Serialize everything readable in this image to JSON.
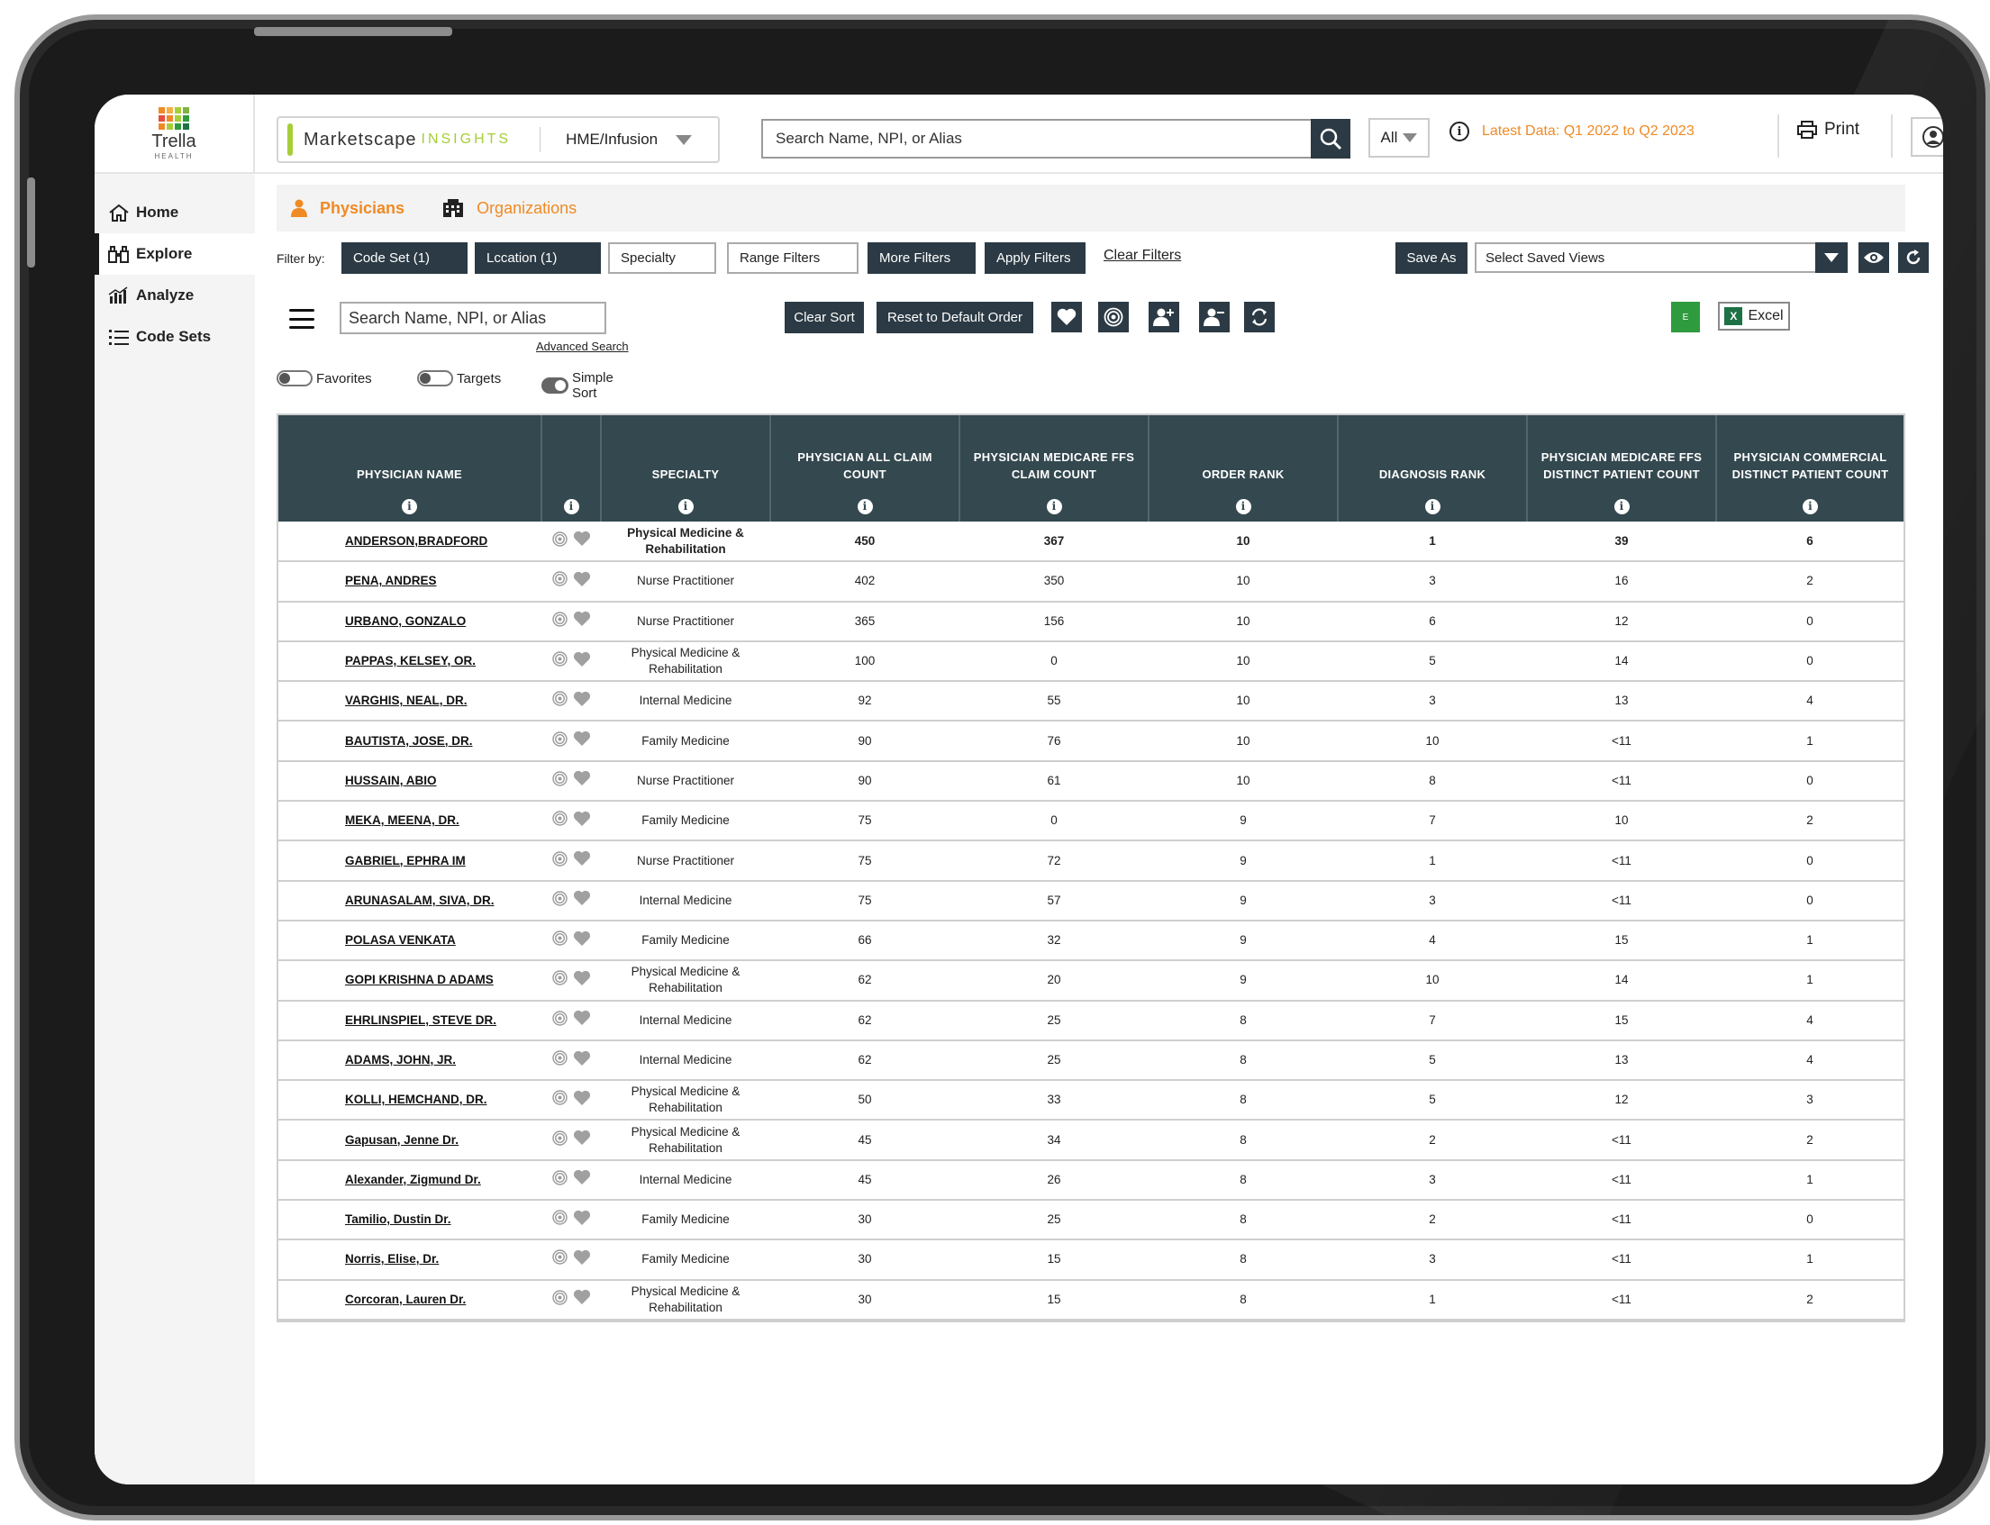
{
  "brand": {
    "logo_name": "Trella",
    "logo_sub": "HEALTH",
    "logo_colors": [
      "#f08a24",
      "#f5b041",
      "#a6ce39",
      "#7fb241",
      "#e74c3c",
      "#f08a24",
      "#a6ce39",
      "#2e9b3f",
      "#f08a24",
      "#a6ce39",
      "#2e9b3f",
      "#1e7145"
    ]
  },
  "sidebar": {
    "items": [
      {
        "label": "Home",
        "icon": "home-icon"
      },
      {
        "label": "Explore",
        "icon": "binoculars-icon",
        "active": true
      },
      {
        "label": "Analyze",
        "icon": "bar-chart-icon"
      },
      {
        "label": "Code Sets",
        "icon": "list-icon"
      }
    ]
  },
  "header": {
    "product_name": "Marketscape",
    "product_suffix": "INSIGHTS",
    "segment": "HME/Infusion",
    "search_placeholder": "Search Name, NPI, or Alias",
    "scope": "All",
    "latest_data": "Latest Data: Q1 2022 to Q2 2023",
    "print_label": "Print"
  },
  "tabs": [
    {
      "label": "Physicians",
      "icon": "person-icon",
      "active": true
    },
    {
      "label": "Organizations",
      "icon": "building-icon"
    }
  ],
  "filters": {
    "label": "Filter by:",
    "code_set": "Code Set (1)",
    "location": "Lccation (1)",
    "specialty": "Specialty",
    "range": "Range Filters",
    "more": "More Filters",
    "apply": "Apply Filters",
    "clear": "Clear Filters",
    "save_as": "Save As",
    "saved_views": "Select Saved Views"
  },
  "toolbar": {
    "search_placeholder": "Search Name, NPI, or Alias",
    "advanced_search": "Advanced Search",
    "clear_sort": "Clear Sort",
    "reset_order": "Reset to Default Order",
    "excel_mini": "E",
    "excel": "Excel"
  },
  "toggles": {
    "favorites": "Favorites",
    "targets": "Targets",
    "simple_sort": "Simple Sort"
  },
  "colors": {
    "accent": "#f08a24",
    "dark": "#2b3a44",
    "header_bg": "#34484f",
    "lime": "#a6ce39"
  },
  "table": {
    "columns": [
      "PHYSICIAN NAME",
      "",
      "SPECIALTY",
      "PHYSICIAN ALL CLAIM COUNT",
      "PHYSICIAN MEDICARE  FFS CLAIM COUNT",
      "ORDER RANK",
      "DIAGNOSIS RANK",
      "PHYSICIAN MEDICARE FFS DISTINCT PATIENT COUNT",
      "PHYSICIAN COMMERCIAL DISTINCT PATIENT COUNT"
    ],
    "rows": [
      {
        "name": "ANDERSON,BRADFORD",
        "specialty": "Physical Medicine & Rehabilitation",
        "all_claims": "450",
        "medicare_claims": "367",
        "order_rank": "10",
        "diagnosis_rank": "1",
        "medicare_patients": "39",
        "commercial_patients": "6"
      },
      {
        "name": "PENA, ANDRES",
        "specialty": "Nurse Practitioner",
        "all_claims": "402",
        "medicare_claims": "350",
        "order_rank": "10",
        "diagnosis_rank": "3",
        "medicare_patients": "16",
        "commercial_patients": "2"
      },
      {
        "name": "URBANO, GONZALO",
        "specialty": "Nurse Practitioner",
        "all_claims": "365",
        "medicare_claims": "156",
        "order_rank": "10",
        "diagnosis_rank": "6",
        "medicare_patients": "12",
        "commercial_patients": "0"
      },
      {
        "name": "PAPPAS, KELSEY, OR.",
        "specialty": "Physical Medicine & Rehabilitation",
        "all_claims": "100",
        "medicare_claims": "0",
        "order_rank": "10",
        "diagnosis_rank": "5",
        "medicare_patients": "14",
        "commercial_patients": "0"
      },
      {
        "name": "VARGHIS, NEAL, DR.",
        "specialty": "Internal Medicine",
        "all_claims": "92",
        "medicare_claims": "55",
        "order_rank": "10",
        "diagnosis_rank": "3",
        "medicare_patients": "13",
        "commercial_patients": "4"
      },
      {
        "name": "BAUTISTA, JOSE, DR.",
        "specialty": "Family Medicine",
        "all_claims": "90",
        "medicare_claims": "76",
        "order_rank": "10",
        "diagnosis_rank": "10",
        "medicare_patients": "<11",
        "commercial_patients": "1"
      },
      {
        "name": "HUSSAIN, ABIO",
        "specialty": "Nurse Practitioner",
        "all_claims": "90",
        "medicare_claims": "61",
        "order_rank": "10",
        "diagnosis_rank": "8",
        "medicare_patients": "<11",
        "commercial_patients": "0"
      },
      {
        "name": "MEKA, MEENA, DR.",
        "specialty": "Family Medicine",
        "all_claims": "75",
        "medicare_claims": "0",
        "order_rank": "9",
        "diagnosis_rank": "7",
        "medicare_patients": "10",
        "commercial_patients": "2"
      },
      {
        "name": "GABRIEL, EPHRA IM",
        "specialty": "Nurse Practitioner",
        "all_claims": "75",
        "medicare_claims": "72",
        "order_rank": "9",
        "diagnosis_rank": "1",
        "medicare_patients": "<11",
        "commercial_patients": "0"
      },
      {
        "name": "ARUNASALAM, SIVA, DR.",
        "specialty": "Internal Medicine",
        "all_claims": "75",
        "medicare_claims": "57",
        "order_rank": "9",
        "diagnosis_rank": "3",
        "medicare_patients": "<11",
        "commercial_patients": "0"
      },
      {
        "name": "POLASA VENKATA",
        "specialty": "Family Medicine",
        "all_claims": "66",
        "medicare_claims": "32",
        "order_rank": "9",
        "diagnosis_rank": "4",
        "medicare_patients": "15",
        "commercial_patients": "1"
      },
      {
        "name": "GOPI KRISHNA D ADAMS",
        "specialty": "Physical Medicine & Rehabilitation",
        "all_claims": "62",
        "medicare_claims": "20",
        "order_rank": "9",
        "diagnosis_rank": "10",
        "medicare_patients": "14",
        "commercial_patients": "1"
      },
      {
        "name": "EHRLINSPIEL, STEVE DR.",
        "specialty": "Internal Medicine",
        "all_claims": "62",
        "medicare_claims": "25",
        "order_rank": "8",
        "diagnosis_rank": "7",
        "medicare_patients": "15",
        "commercial_patients": "4"
      },
      {
        "name": "ADAMS, JOHN, JR.",
        "specialty": "Internal Medicine",
        "all_claims": "62",
        "medicare_claims": "25",
        "order_rank": "8",
        "diagnosis_rank": "5",
        "medicare_patients": "13",
        "commercial_patients": "4"
      },
      {
        "name": "KOLLI, HEMCHAND, DR.",
        "specialty": "Physical Medicine & Rehabilitation",
        "all_claims": "50",
        "medicare_claims": "33",
        "order_rank": "8",
        "diagnosis_rank": "5",
        "medicare_patients": "12",
        "commercial_patients": "3"
      },
      {
        "name": "Gapusan, Jenne Dr.",
        "specialty": "Physical Medicine & Rehabilitation",
        "all_claims": "45",
        "medicare_claims": "34",
        "order_rank": "8",
        "diagnosis_rank": "2",
        "medicare_patients": "<11",
        "commercial_patients": "2"
      },
      {
        "name": "Alexander, Zigmund Dr.",
        "specialty": "Internal Medicine",
        "all_claims": "45",
        "medicare_claims": "26",
        "order_rank": "8",
        "diagnosis_rank": "3",
        "medicare_patients": "<11",
        "commercial_patients": "1"
      },
      {
        "name": "Tamilio, Dustin Dr.",
        "specialty": "Family Medicine",
        "all_claims": "30",
        "medicare_claims": "25",
        "order_rank": "8",
        "diagnosis_rank": "2",
        "medicare_patients": "<11",
        "commercial_patients": "0"
      },
      {
        "name": "Norris, Elise, Dr.",
        "specialty": "Family Medicine",
        "all_claims": "30",
        "medicare_claims": "15",
        "order_rank": "8",
        "diagnosis_rank": "3",
        "medicare_patients": "<11",
        "commercial_patients": "1"
      },
      {
        "name": "Corcoran, Lauren Dr.",
        "specialty": "Physical Medicine & Rehabilitation",
        "all_claims": "30",
        "medicare_claims": "15",
        "order_rank": "8",
        "diagnosis_rank": "1",
        "medicare_patients": "<11",
        "commercial_patients": "2"
      }
    ]
  }
}
